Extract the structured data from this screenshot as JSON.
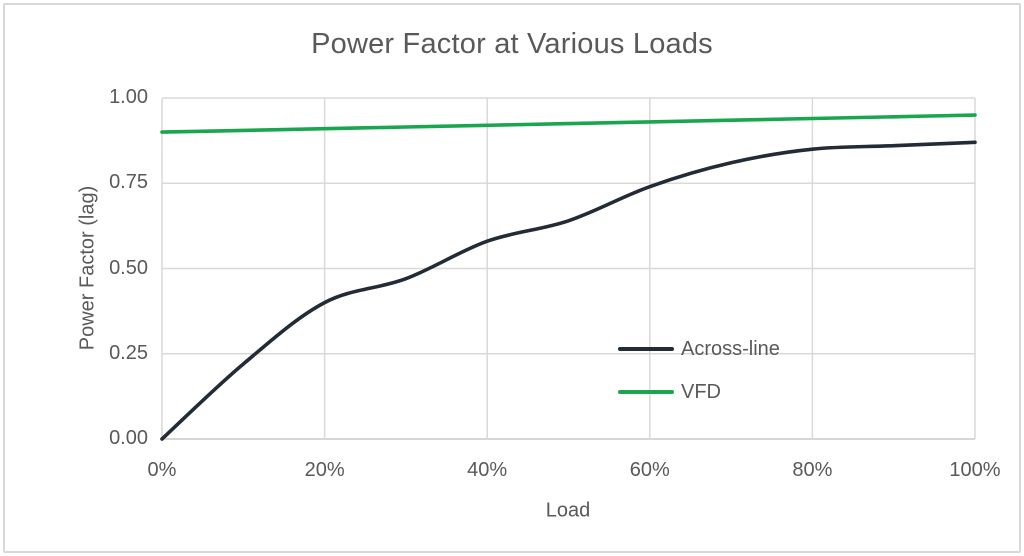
{
  "chart_data": {
    "type": "line",
    "title": "Power Factor at Various Loads",
    "xlabel": "Load",
    "ylabel": "Power Factor (lag)",
    "x": [
      0,
      10,
      20,
      30,
      40,
      50,
      60,
      70,
      80,
      90,
      100
    ],
    "x_unit": "%",
    "series": [
      {
        "name": "Across-line",
        "color": "#222b36",
        "values": [
          0.0,
          0.22,
          0.4,
          0.47,
          0.58,
          0.64,
          0.74,
          0.81,
          0.85,
          0.86,
          0.87
        ]
      },
      {
        "name": "VFD",
        "color": "#1aa64e",
        "values": [
          0.9,
          0.905,
          0.91,
          0.915,
          0.92,
          0.925,
          0.93,
          0.935,
          0.94,
          0.945,
          0.95
        ]
      }
    ],
    "xlim": [
      0,
      100
    ],
    "ylim": [
      0,
      1.0
    ],
    "x_ticks": [
      0,
      20,
      40,
      60,
      80,
      100
    ],
    "x_tick_labels": [
      "0%",
      "20%",
      "40%",
      "60%",
      "80%",
      "100%"
    ],
    "y_ticks": [
      0,
      0.25,
      0.5,
      0.75,
      1.0
    ],
    "y_tick_labels": [
      "0.00",
      "0.25",
      "0.50",
      "0.75",
      "1.00"
    ],
    "grid": true,
    "legend_position": "inside-right-middle",
    "colors": {
      "gridline": "#d9d9d9",
      "axis_line": "#c9c9c9",
      "text": "#595959",
      "border": "#d7d7d7"
    }
  }
}
